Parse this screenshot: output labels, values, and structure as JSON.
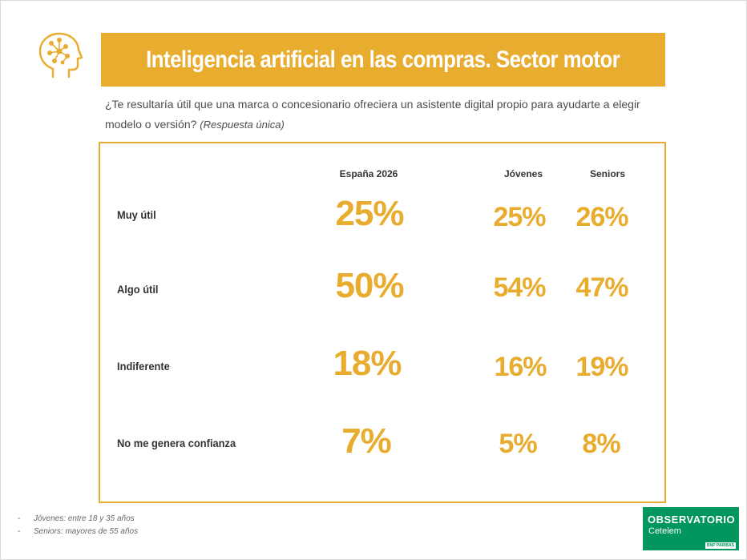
{
  "title": "Inteligencia artificial en las compras. Sector motor",
  "question": {
    "text": "¿Te resultaría útil que una marca o concesionario ofreciera un asistente digital propio para ayudarte a elegir modelo o versión?",
    "note": "(Respuesta única)"
  },
  "colors": {
    "accent": "#e8ac2f",
    "logo_green": "#00965e"
  },
  "icons": {
    "header": "brain-gear-icon"
  },
  "chart_data": {
    "type": "table",
    "columns": [
      "España 2026",
      "Jóvenes",
      "Seniors"
    ],
    "rows": [
      {
        "label": "Muy útil",
        "values": [
          "25%",
          "25%",
          "26%"
        ]
      },
      {
        "label": "Algo útil",
        "values": [
          "50%",
          "54%",
          "47%"
        ]
      },
      {
        "label": "Indiferente",
        "values": [
          "18%",
          "16%",
          "19%"
        ]
      },
      {
        "label": "No me genera confianza",
        "values": [
          "7%",
          "5%",
          "8%"
        ]
      }
    ]
  },
  "footnotes": [
    "Jóvenes: entre 18 y 35 años",
    "Seniors: mayores de 55 años"
  ],
  "logo": {
    "line1": "OBSERVATORIO",
    "line2": "Cetelem",
    "tag": "BNP PARIBAS"
  }
}
